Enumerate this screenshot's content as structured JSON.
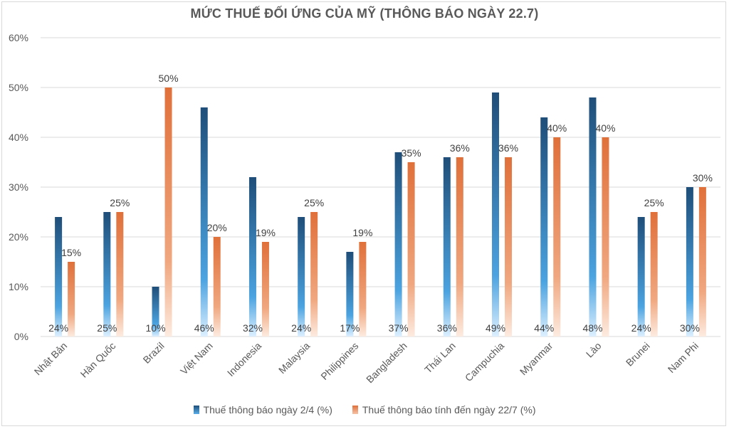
{
  "chart_data": {
    "type": "bar",
    "title": "MỨC THUẾ ĐỐI ỨNG CỦA MỸ (THÔNG BÁO NGÀY 22.7)",
    "categories": [
      "Nhật Bản",
      "Hàn Quốc",
      "Brazil",
      "Việt Nam",
      "Indonesia",
      "Malaysia",
      "Philippines",
      "Bangladesh",
      "Thái Lan",
      "Campuchia",
      "Myanmar",
      "Lào",
      "Brunei",
      "Nam Phi"
    ],
    "series": [
      {
        "name": "Thuế thông báo ngày 2/4 (%)",
        "values": [
          24,
          25,
          10,
          46,
          32,
          24,
          17,
          37,
          36,
          49,
          44,
          48,
          24,
          30
        ],
        "color": "#1f4e79",
        "color_light": "#5aaee8"
      },
      {
        "name": "Thuế thông báo tính đến ngày 22/7 (%)",
        "values": [
          15,
          25,
          50,
          20,
          19,
          25,
          19,
          35,
          36,
          36,
          40,
          40,
          25,
          30
        ],
        "color": "#e0703a",
        "color_light": "#fde9dd"
      }
    ],
    "series1_labels": [
      "24%",
      "25%",
      "10%",
      "46%",
      "32%",
      "24%",
      "17%",
      "37%",
      "36%",
      "49%",
      "44%",
      "48%",
      "24%",
      "30%"
    ],
    "series2_labels": [
      "15%",
      "25%",
      "50%",
      "20%",
      "19%",
      "25%",
      "19%",
      "35%",
      "36%",
      "36%",
      "40%",
      "40%",
      "25%",
      "30%"
    ],
    "yticks": [
      "0%",
      "10%",
      "20%",
      "30%",
      "40%",
      "50%",
      "60%"
    ],
    "ylim": [
      0,
      60
    ],
    "grid": true,
    "legend_position": "bottom"
  }
}
